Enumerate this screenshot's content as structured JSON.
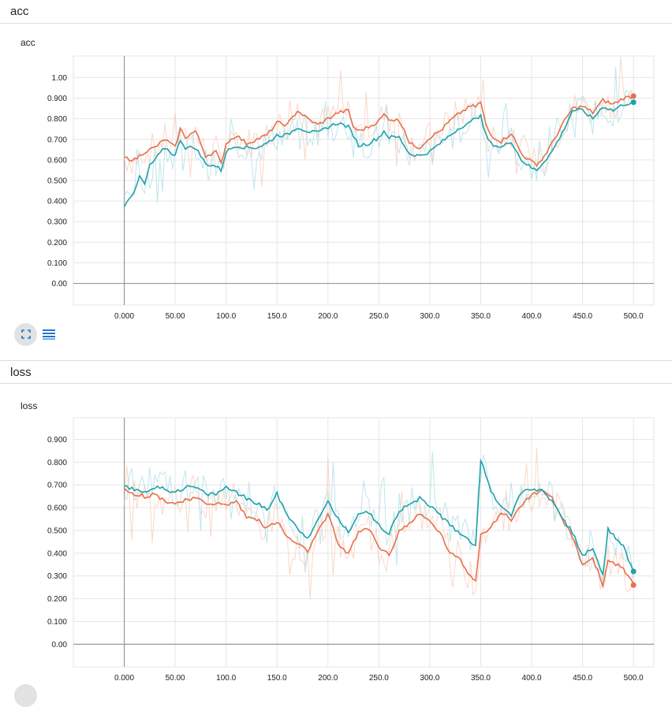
{
  "sections": [
    {
      "header": "acc",
      "card_title": "acc"
    },
    {
      "header": "loss",
      "card_title": "loss"
    }
  ],
  "toolbar": {
    "expand_icon": "fullscreen-icon",
    "data_icon": "list-icon"
  },
  "colors": {
    "orange": "#e7704a",
    "teal": "#1fa0a9",
    "orange_raw": "#f9c9b8",
    "teal_raw": "#a9dde6",
    "grid": "#e6e6e6",
    "axis": "#999999"
  },
  "chart_data": [
    {
      "type": "line",
      "title": "acc",
      "xlabel": "",
      "ylabel": "",
      "xlim": [
        -50,
        520
      ],
      "ylim": [
        -0.105,
        1.105
      ],
      "x_ticks": [
        "0.000",
        "50.00",
        "100.0",
        "150.0",
        "200.0",
        "250.0",
        "300.0",
        "350.0",
        "400.0",
        "450.0",
        "500.0"
      ],
      "y_ticks": [
        "0.00",
        "0.100",
        "0.200",
        "0.300",
        "0.400",
        "0.500",
        "0.600",
        "0.700",
        "0.800",
        "0.900",
        "1.00"
      ],
      "grid": true,
      "series": [
        {
          "color": "#e7704a",
          "points": [
            [
              0,
              0.61
            ],
            [
              10,
              0.6
            ],
            [
              20,
              0.64
            ],
            [
              30,
              0.66
            ],
            [
              40,
              0.7
            ],
            [
              50,
              0.66
            ],
            [
              55,
              0.75
            ],
            [
              60,
              0.71
            ],
            [
              70,
              0.74
            ],
            [
              80,
              0.62
            ],
            [
              90,
              0.64
            ],
            [
              95,
              0.58
            ],
            [
              100,
              0.68
            ],
            [
              110,
              0.72
            ],
            [
              120,
              0.68
            ],
            [
              130,
              0.7
            ],
            [
              140,
              0.72
            ],
            [
              150,
              0.78
            ],
            [
              160,
              0.77
            ],
            [
              170,
              0.84
            ],
            [
              180,
              0.8
            ],
            [
              190,
              0.77
            ],
            [
              200,
              0.8
            ],
            [
              210,
              0.83
            ],
            [
              220,
              0.84
            ],
            [
              225,
              0.76
            ],
            [
              230,
              0.74
            ],
            [
              240,
              0.76
            ],
            [
              250,
              0.79
            ],
            [
              255,
              0.82
            ],
            [
              260,
              0.8
            ],
            [
              270,
              0.79
            ],
            [
              275,
              0.75
            ],
            [
              280,
              0.68
            ],
            [
              290,
              0.66
            ],
            [
              300,
              0.71
            ],
            [
              310,
              0.74
            ],
            [
              320,
              0.79
            ],
            [
              330,
              0.83
            ],
            [
              340,
              0.86
            ],
            [
              345,
              0.86
            ],
            [
              350,
              0.88
            ],
            [
              355,
              0.77
            ],
            [
              360,
              0.72
            ],
            [
              370,
              0.69
            ],
            [
              380,
              0.73
            ],
            [
              390,
              0.63
            ],
            [
              400,
              0.59
            ],
            [
              405,
              0.58
            ],
            [
              410,
              0.6
            ],
            [
              420,
              0.68
            ],
            [
              430,
              0.77
            ],
            [
              440,
              0.85
            ],
            [
              450,
              0.86
            ],
            [
              460,
              0.83
            ],
            [
              470,
              0.89
            ],
            [
              480,
              0.87
            ],
            [
              490,
              0.9
            ],
            [
              500,
              0.91
            ]
          ]
        },
        {
          "color": "#1fa0a9",
          "points": [
            [
              0,
              0.38
            ],
            [
              5,
              0.42
            ],
            [
              10,
              0.44
            ],
            [
              15,
              0.52
            ],
            [
              20,
              0.48
            ],
            [
              25,
              0.57
            ],
            [
              30,
              0.6
            ],
            [
              40,
              0.66
            ],
            [
              50,
              0.62
            ],
            [
              55,
              0.7
            ],
            [
              60,
              0.66
            ],
            [
              70,
              0.66
            ],
            [
              80,
              0.58
            ],
            [
              90,
              0.57
            ],
            [
              95,
              0.55
            ],
            [
              100,
              0.64
            ],
            [
              110,
              0.67
            ],
            [
              120,
              0.66
            ],
            [
              130,
              0.66
            ],
            [
              140,
              0.68
            ],
            [
              150,
              0.72
            ],
            [
              160,
              0.72
            ],
            [
              170,
              0.76
            ],
            [
              180,
              0.74
            ],
            [
              190,
              0.73
            ],
            [
              200,
              0.76
            ],
            [
              210,
              0.78
            ],
            [
              220,
              0.76
            ],
            [
              225,
              0.72
            ],
            [
              230,
              0.67
            ],
            [
              240,
              0.68
            ],
            [
              250,
              0.71
            ],
            [
              255,
              0.74
            ],
            [
              260,
              0.71
            ],
            [
              270,
              0.71
            ],
            [
              275,
              0.67
            ],
            [
              280,
              0.63
            ],
            [
              290,
              0.62
            ],
            [
              300,
              0.64
            ],
            [
              310,
              0.68
            ],
            [
              320,
              0.72
            ],
            [
              330,
              0.76
            ],
            [
              340,
              0.78
            ],
            [
              345,
              0.81
            ],
            [
              350,
              0.81
            ],
            [
              355,
              0.72
            ],
            [
              360,
              0.68
            ],
            [
              370,
              0.66
            ],
            [
              380,
              0.69
            ],
            [
              390,
              0.6
            ],
            [
              400,
              0.56
            ],
            [
              405,
              0.55
            ],
            [
              410,
              0.58
            ],
            [
              420,
              0.64
            ],
            [
              430,
              0.73
            ],
            [
              440,
              0.84
            ],
            [
              450,
              0.84
            ],
            [
              460,
              0.8
            ],
            [
              470,
              0.86
            ],
            [
              480,
              0.84
            ],
            [
              490,
              0.87
            ],
            [
              500,
              0.88
            ]
          ]
        }
      ]
    },
    {
      "type": "line",
      "title": "loss",
      "xlabel": "",
      "ylabel": "",
      "xlim": [
        -50,
        520
      ],
      "ylim": [
        -0.099,
        0.995
      ],
      "x_ticks": [
        "0.000",
        "50.00",
        "100.0",
        "150.0",
        "200.0",
        "250.0",
        "300.0",
        "350.0",
        "400.0",
        "450.0",
        "500.0"
      ],
      "y_ticks": [
        "0.00",
        "0.100",
        "0.200",
        "0.300",
        "0.400",
        "0.500",
        "0.600",
        "0.700",
        "0.800",
        "0.900"
      ],
      "grid": true,
      "series": [
        {
          "color": "#e7704a",
          "points": [
            [
              0,
              0.69
            ],
            [
              10,
              0.66
            ],
            [
              20,
              0.65
            ],
            [
              30,
              0.66
            ],
            [
              40,
              0.63
            ],
            [
              50,
              0.62
            ],
            [
              60,
              0.63
            ],
            [
              70,
              0.64
            ],
            [
              80,
              0.62
            ],
            [
              90,
              0.62
            ],
            [
              100,
              0.61
            ],
            [
              110,
              0.63
            ],
            [
              120,
              0.56
            ],
            [
              130,
              0.55
            ],
            [
              140,
              0.51
            ],
            [
              150,
              0.54
            ],
            [
              160,
              0.47
            ],
            [
              170,
              0.44
            ],
            [
              180,
              0.41
            ],
            [
              190,
              0.49
            ],
            [
              200,
              0.57
            ],
            [
              210,
              0.44
            ],
            [
              220,
              0.4
            ],
            [
              230,
              0.49
            ],
            [
              240,
              0.51
            ],
            [
              250,
              0.43
            ],
            [
              260,
              0.39
            ],
            [
              270,
              0.5
            ],
            [
              280,
              0.53
            ],
            [
              290,
              0.57
            ],
            [
              300,
              0.54
            ],
            [
              310,
              0.49
            ],
            [
              320,
              0.4
            ],
            [
              330,
              0.37
            ],
            [
              340,
              0.3
            ],
            [
              345,
              0.28
            ],
            [
              350,
              0.49
            ],
            [
              360,
              0.51
            ],
            [
              370,
              0.58
            ],
            [
              380,
              0.55
            ],
            [
              390,
              0.61
            ],
            [
              400,
              0.66
            ],
            [
              410,
              0.67
            ],
            [
              420,
              0.64
            ],
            [
              430,
              0.55
            ],
            [
              440,
              0.47
            ],
            [
              450,
              0.35
            ],
            [
              460,
              0.38
            ],
            [
              470,
              0.26
            ],
            [
              475,
              0.37
            ],
            [
              480,
              0.36
            ],
            [
              490,
              0.33
            ],
            [
              500,
              0.26
            ]
          ]
        },
        {
          "color": "#1fa0a9",
          "points": [
            [
              0,
              0.69
            ],
            [
              10,
              0.68
            ],
            [
              20,
              0.67
            ],
            [
              30,
              0.69
            ],
            [
              40,
              0.68
            ],
            [
              50,
              0.67
            ],
            [
              60,
              0.69
            ],
            [
              70,
              0.69
            ],
            [
              80,
              0.66
            ],
            [
              90,
              0.66
            ],
            [
              100,
              0.69
            ],
            [
              110,
              0.67
            ],
            [
              120,
              0.64
            ],
            [
              130,
              0.62
            ],
            [
              140,
              0.59
            ],
            [
              150,
              0.66
            ],
            [
              160,
              0.57
            ],
            [
              170,
              0.51
            ],
            [
              180,
              0.47
            ],
            [
              190,
              0.54
            ],
            [
              200,
              0.63
            ],
            [
              210,
              0.55
            ],
            [
              220,
              0.49
            ],
            [
              230,
              0.58
            ],
            [
              240,
              0.58
            ],
            [
              250,
              0.52
            ],
            [
              260,
              0.49
            ],
            [
              270,
              0.59
            ],
            [
              280,
              0.61
            ],
            [
              290,
              0.64
            ],
            [
              300,
              0.61
            ],
            [
              310,
              0.57
            ],
            [
              320,
              0.52
            ],
            [
              330,
              0.49
            ],
            [
              340,
              0.45
            ],
            [
              345,
              0.44
            ],
            [
              350,
              0.81
            ],
            [
              360,
              0.67
            ],
            [
              370,
              0.61
            ],
            [
              380,
              0.57
            ],
            [
              390,
              0.67
            ],
            [
              400,
              0.68
            ],
            [
              410,
              0.68
            ],
            [
              420,
              0.63
            ],
            [
              430,
              0.56
            ],
            [
              440,
              0.49
            ],
            [
              450,
              0.39
            ],
            [
              460,
              0.42
            ],
            [
              470,
              0.3
            ],
            [
              475,
              0.51
            ],
            [
              480,
              0.48
            ],
            [
              490,
              0.43
            ],
            [
              500,
              0.32
            ]
          ]
        }
      ]
    }
  ]
}
